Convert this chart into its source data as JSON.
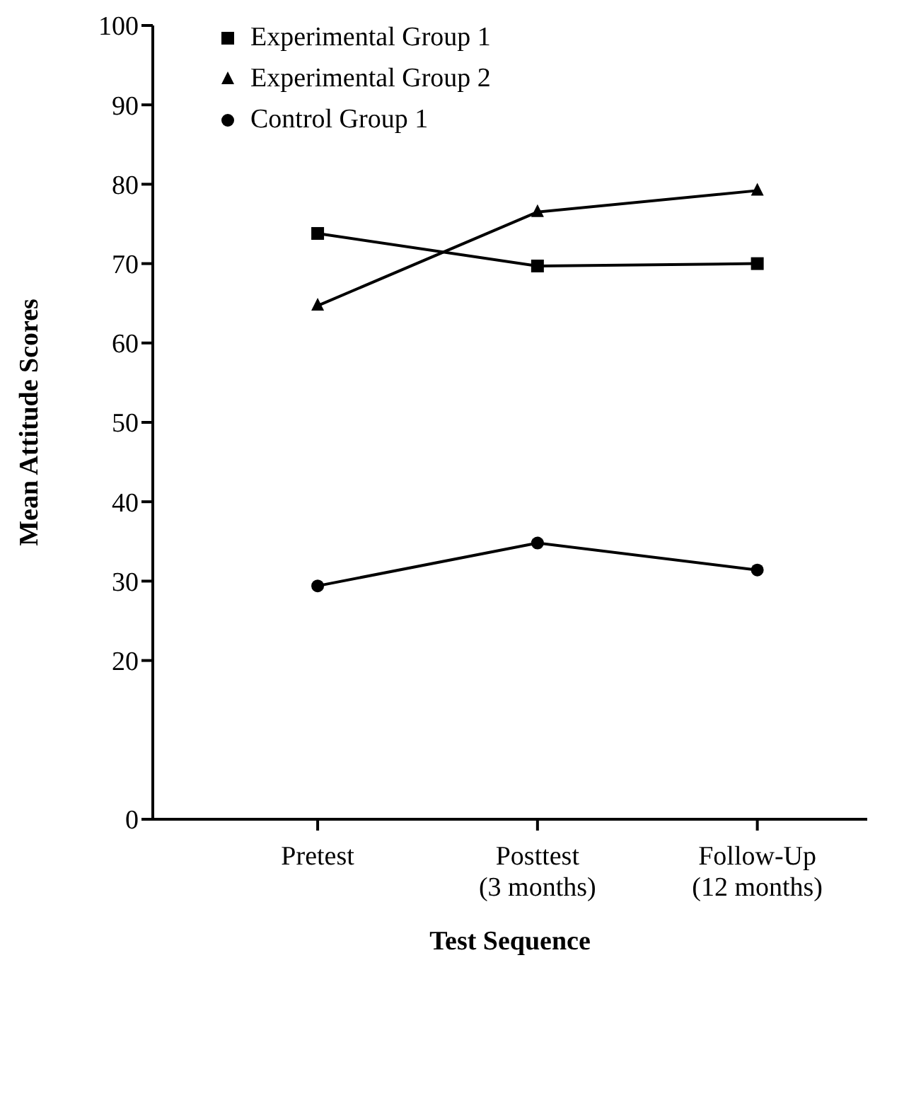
{
  "chart_data": {
    "type": "line",
    "xlabel": "Test Sequence",
    "ylabel": "Mean Attitude Scores",
    "categories": [
      "Pretest",
      "Posttest\n(3 months)",
      "Follow-Up\n(12 months)"
    ],
    "series": [
      {
        "name": "Experimental Group 1",
        "color": "#000000",
        "marker": "square",
        "values": [
          73.8,
          69.7,
          70.0
        ]
      },
      {
        "name": "Experimental Group 2",
        "color": "#000000",
        "marker": "triangle",
        "values": [
          64.7,
          76.5,
          79.2
        ]
      },
      {
        "name": "Control Group 1",
        "color": "#000000",
        "marker": "circle",
        "values": [
          29.4,
          34.8,
          31.4
        ]
      }
    ],
    "ylim": [
      0,
      100
    ],
    "yticks": [
      0,
      20,
      30,
      40,
      50,
      60,
      70,
      80,
      90,
      100
    ],
    "grid": false,
    "legend": "top left",
    "line_style": "solid"
  }
}
